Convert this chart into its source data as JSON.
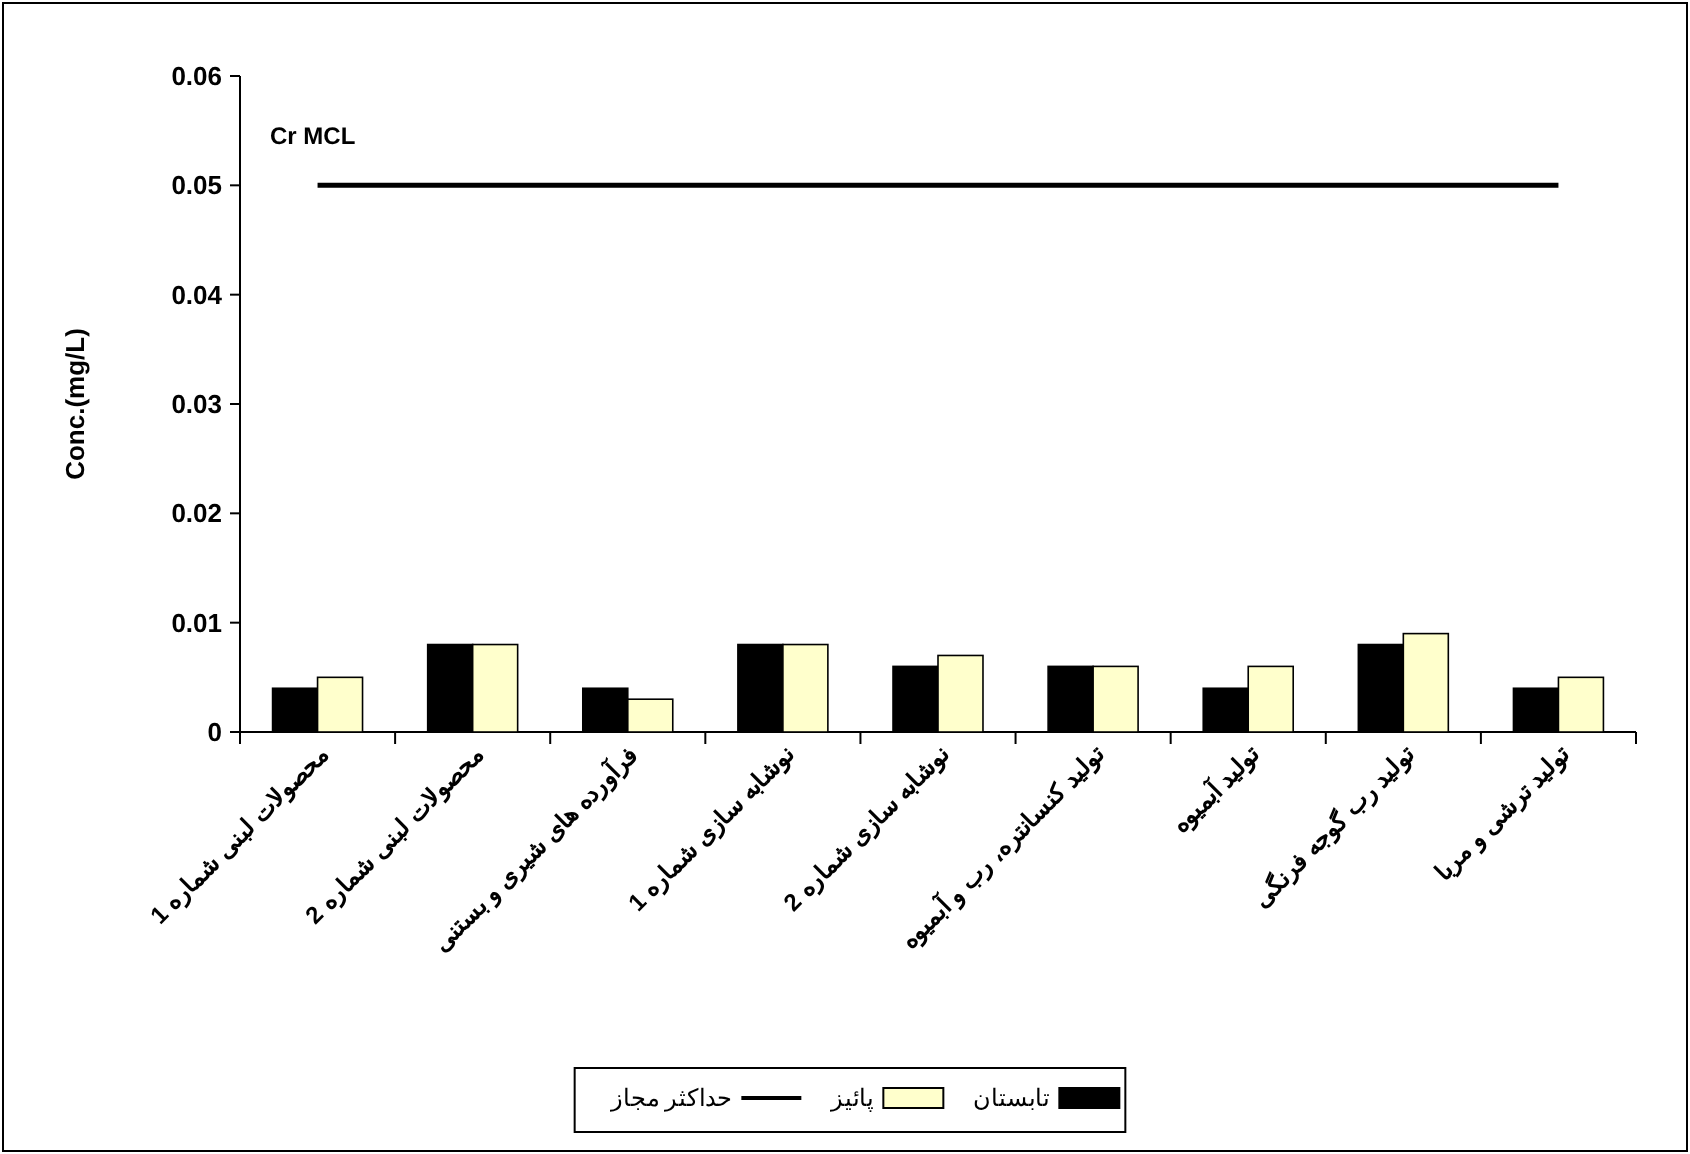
{
  "chart_data": {
    "type": "bar",
    "ylabel": "Conc.(mg/L)",
    "categories": [
      "محصولات لبنی شماره 1",
      "محصولات لبنی شماره 2",
      "فرآورده های شیری و بستنی",
      "نوشابه سازی شماره 1",
      "نوشابه سازی شماره 2",
      "تولید کنسانتره، رب و آبمیوه",
      "تولید آبمیوه",
      "تولید رب گوجه فرنگی",
      "تولید ترشی و مربا"
    ],
    "series": [
      {
        "name": "تابستان",
        "color": "#000000",
        "values": [
          0.004,
          0.008,
          0.004,
          0.008,
          0.006,
          0.006,
          0.004,
          0.008,
          0.004
        ]
      },
      {
        "name": "پائیز",
        "color": "#ffffcc",
        "values": [
          0.005,
          0.008,
          0.003,
          0.008,
          0.007,
          0.006,
          0.006,
          0.009,
          0.005
        ]
      },
      {
        "name": "حداکثر مجاز",
        "type": "line",
        "color": "#000000",
        "values": [
          0.05,
          0.05,
          0.05,
          0.05,
          0.05,
          0.05,
          0.05,
          0.05,
          0.05
        ]
      }
    ],
    "ylim": [
      0,
      0.06
    ],
    "yticks": [
      0,
      0.01,
      0.02,
      0.03,
      0.04,
      0.05,
      0.06
    ],
    "annotations": [
      "Cr MCL"
    ],
    "legend": "bottom",
    "grid": false
  }
}
